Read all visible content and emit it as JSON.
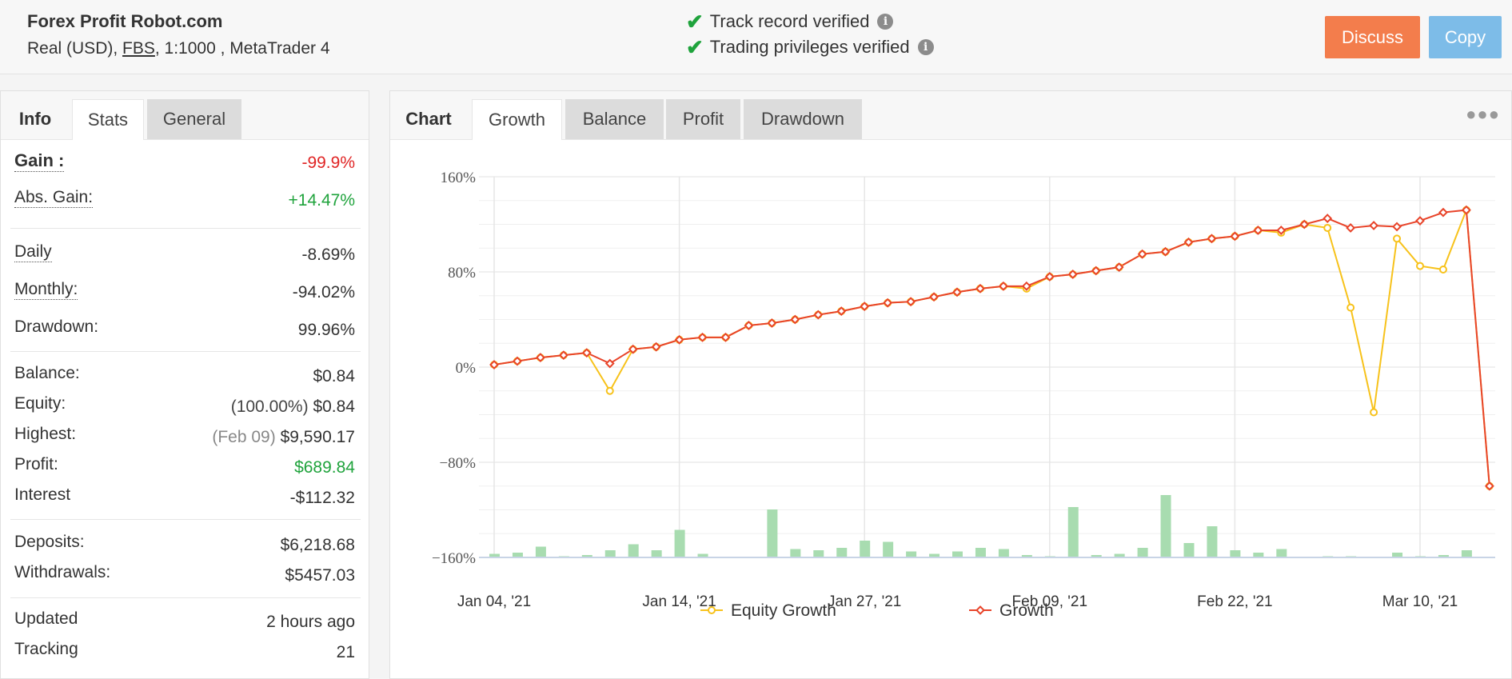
{
  "header": {
    "title": "Forex Profit Robot.com",
    "account_type": "Real (USD),",
    "broker": "FBS",
    "leverage_platform": ", 1:1000 , MetaTrader 4",
    "verifications": [
      {
        "label": "Track record verified"
      },
      {
        "label": "Trading privileges verified"
      }
    ],
    "discuss_label": "Discuss",
    "copy_label": "Copy"
  },
  "left_tabs": {
    "info": "Info",
    "stats": "Stats",
    "general": "General"
  },
  "stats": {
    "gain": {
      "label": "Gain :",
      "value": "-99.9%"
    },
    "abs_gain": {
      "label": "Abs. Gain:",
      "value": "+14.47%"
    },
    "daily": {
      "label": "Daily",
      "value": "-8.69%"
    },
    "monthly": {
      "label": "Monthly:",
      "value": "-94.02%"
    },
    "drawdown": {
      "label": "Drawdown:",
      "value": "99.96%"
    },
    "balance": {
      "label": "Balance:",
      "value": "$0.84"
    },
    "equity": {
      "label": "Equity:",
      "prefix": "(100.00%)",
      "value": "$0.84"
    },
    "highest": {
      "label": "Highest:",
      "prefix": "(Feb 09)",
      "value": "$9,590.17"
    },
    "profit": {
      "label": "Profit:",
      "value": "$689.84"
    },
    "interest": {
      "label": "Interest",
      "value": "-$112.32"
    },
    "deposits": {
      "label": "Deposits:",
      "value": "$6,218.68"
    },
    "withdrawals": {
      "label": "Withdrawals:",
      "value": "$5457.03"
    },
    "updated": {
      "label": "Updated",
      "value": "2 hours ago"
    },
    "tracking": {
      "label": "Tracking",
      "value": "21"
    }
  },
  "chart_tabs": {
    "chart": "Chart",
    "growth": "Growth",
    "balance": "Balance",
    "profit": "Profit",
    "drawdown": "Drawdown"
  },
  "colors": {
    "equity": "#f7c21b",
    "growth": "#e8442a",
    "bars": "#a8dcb0",
    "grid": "#e8e8e8"
  },
  "chart_data": {
    "type": "line",
    "title": "",
    "xlabel": "",
    "ylabel": "",
    "ylim": [
      -160,
      160
    ],
    "yticks": [
      -160,
      -80,
      0,
      80,
      160
    ],
    "ytick_labels": [
      "−160%",
      "−80%",
      "0%",
      "80%",
      "160%"
    ],
    "xtick_labels": [
      "Jan 04, '21",
      "Jan 14, '21",
      "Jan 27, '21",
      "Feb 09, '21",
      "Feb 22, '21",
      "Mar 10, '21"
    ],
    "xtick_index": [
      0,
      8,
      16,
      24,
      32,
      40
    ],
    "legend": "bottom-center",
    "grid": true,
    "series": [
      {
        "name": "Equity Growth",
        "values": [
          2,
          5,
          8,
          10,
          12,
          -20,
          15,
          17,
          23,
          25,
          25,
          35,
          37,
          40,
          44,
          47,
          51,
          54,
          55,
          59,
          63,
          66,
          68,
          66,
          76,
          78,
          81,
          84,
          95,
          97,
          105,
          108,
          110,
          115,
          113,
          120,
          117,
          50,
          -38,
          108,
          85,
          82,
          132,
          -100
        ]
      },
      {
        "name": "Growth",
        "values": [
          2,
          5,
          8,
          10,
          12,
          3,
          15,
          17,
          23,
          25,
          25,
          35,
          37,
          40,
          44,
          47,
          51,
          54,
          55,
          59,
          63,
          66,
          68,
          68,
          76,
          78,
          81,
          84,
          95,
          97,
          105,
          108,
          110,
          115,
          115,
          120,
          125,
          117,
          119,
          118,
          123,
          130,
          132,
          -100
        ]
      }
    ],
    "bar_values": [
      3,
      4,
      9,
      1,
      2,
      6,
      11,
      6,
      23,
      3,
      0,
      0,
      40,
      7,
      6,
      8,
      14,
      13,
      5,
      3,
      5,
      8,
      7,
      2,
      1,
      42,
      2,
      3,
      8,
      52,
      12,
      26,
      6,
      4,
      7,
      0,
      1,
      1,
      0,
      4,
      1,
      2,
      6
    ]
  }
}
